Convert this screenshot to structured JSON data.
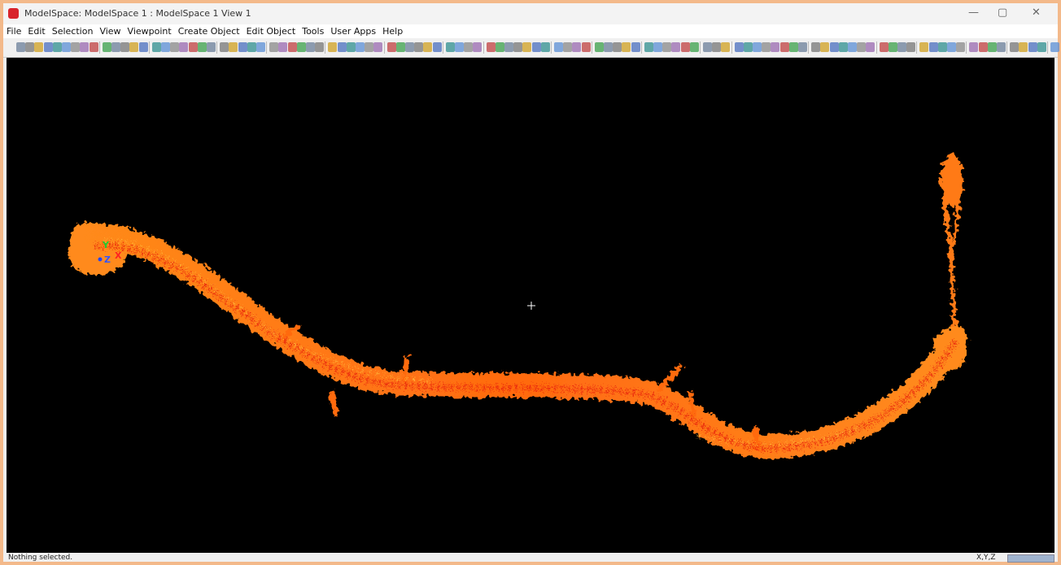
{
  "window": {
    "title": "ModelSpace: ModelSpace 1 : ModelSpace 1 View 1"
  },
  "menu": [
    "File",
    "Edit",
    "Selection",
    "View",
    "Viewpoint",
    "Create Object",
    "Edit Object",
    "Tools",
    "User Apps",
    "Help"
  ],
  "viewport": {
    "axes": [
      "Y",
      "Z",
      "X"
    ]
  },
  "status_bar": {
    "message": "Nothing selected.",
    "coordinates": "X,Y,Z"
  }
}
